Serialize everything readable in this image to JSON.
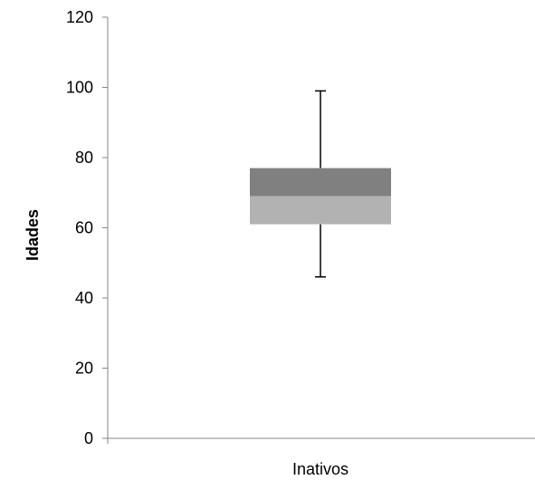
{
  "chart_data": {
    "type": "box",
    "title": "",
    "xlabel": "",
    "ylabel": "Idades",
    "categories": [
      "Inativos"
    ],
    "ylim": [
      0,
      120
    ],
    "yticks": [
      0,
      20,
      40,
      60,
      80,
      100,
      120
    ],
    "boxes": [
      {
        "category": "Inativos",
        "min": 46,
        "q1": 61,
        "median": 69,
        "q3": 77,
        "max": 99
      }
    ],
    "grid": false,
    "legend": "none",
    "colors": {
      "upper_box": "#808080",
      "lower_box": "#b2b2b2",
      "axis": "#868686",
      "whisker": "#000000"
    }
  }
}
